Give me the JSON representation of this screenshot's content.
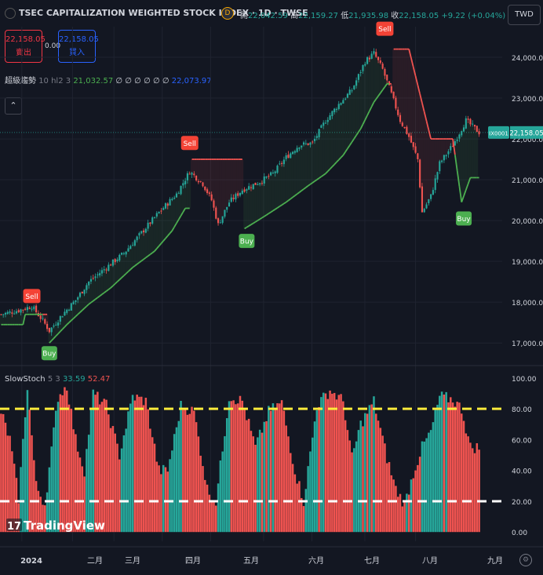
{
  "header": {
    "title": "TSEC CAPITALIZATION WEIGHTED STOCK INDEX · 1D · TWSE",
    "badge": "D",
    "open_label": "開",
    "open": "22,042.59",
    "high_label": "高",
    "high": "22,159.27",
    "low_label": "低",
    "low": "21,935.98",
    "close_label": "收",
    "close": "22,158.05",
    "change": "+9.22 (+0.04%)",
    "currency": "TWD"
  },
  "trade": {
    "sell_price": "22,158.05",
    "sell_label": "賣出",
    "spread": "0.00",
    "buy_price": "22,158.05",
    "buy_label": "買入"
  },
  "indicator": {
    "name": "超級趨勢",
    "params": "10 hl2 3",
    "value1": "21,032.57",
    "empties": "∅ ∅ ∅ ∅ ∅ ∅",
    "value2": "22,073.97"
  },
  "price_tag": {
    "symbol": "IX0001",
    "value": "22,158.05"
  },
  "oscillator": {
    "name": "SlowStoch",
    "params": "5 3",
    "k": "33.59",
    "d": "52.47"
  },
  "logo": "TradingView",
  "colors": {
    "up": "#26a69a",
    "down": "#ef5350",
    "buy": "#4caf50",
    "sell": "#f44336",
    "background": "#131722"
  },
  "chart_data": [
    {
      "type": "candlestick",
      "y_ticks": [
        "24,000.00",
        "23,000.00",
        "22,000.00",
        "21,000.00",
        "20,000.00",
        "19,000.00",
        "18,000.00",
        "17,000.00"
      ],
      "y_values": [
        24000,
        23000,
        22000,
        21000,
        20000,
        19000,
        18000,
        17000
      ],
      "ylim": [
        16600,
        24750
      ],
      "x_ticks": [
        "2024",
        "二月",
        "三月",
        "四月",
        "五月",
        "六月",
        "七月",
        "八月",
        "九月"
      ],
      "price_anchors": [
        [
          0,
          17700
        ],
        [
          8,
          17800
        ],
        [
          14,
          17900
        ],
        [
          19,
          17550
        ],
        [
          22,
          17300
        ],
        [
          28,
          17700
        ],
        [
          34,
          18050
        ],
        [
          40,
          18500
        ],
        [
          48,
          18850
        ],
        [
          56,
          19200
        ],
        [
          64,
          19700
        ],
        [
          72,
          20200
        ],
        [
          80,
          20650
        ],
        [
          86,
          21200
        ],
        [
          92,
          20900
        ],
        [
          96,
          20500
        ],
        [
          99,
          19900
        ],
        [
          104,
          20450
        ],
        [
          110,
          20750
        ],
        [
          118,
          20950
        ],
        [
          124,
          21150
        ],
        [
          130,
          21550
        ],
        [
          136,
          21850
        ],
        [
          142,
          21900
        ],
        [
          148,
          22450
        ],
        [
          154,
          22850
        ],
        [
          160,
          23200
        ],
        [
          166,
          23900
        ],
        [
          170,
          24100
        ],
        [
          174,
          23700
        ],
        [
          178,
          23100
        ],
        [
          182,
          22450
        ],
        [
          186,
          22050
        ],
        [
          190,
          21500
        ],
        [
          192,
          20200
        ],
        [
          196,
          20600
        ],
        [
          200,
          21400
        ],
        [
          206,
          21850
        ],
        [
          212,
          22450
        ],
        [
          218,
          22158
        ]
      ],
      "supertrend": [
        [
          0,
          17450
        ],
        [
          10,
          17450
        ],
        [
          10,
          17700
        ],
        [
          14,
          17700
        ],
        [
          21,
          17700
        ],
        [
          22,
          17000
        ],
        [
          30,
          17450
        ],
        [
          40,
          17950
        ],
        [
          50,
          18350
        ],
        [
          60,
          18850
        ],
        [
          70,
          19250
        ],
        [
          78,
          19750
        ],
        [
          84,
          20300
        ],
        [
          86,
          20300
        ],
        [
          86,
          21500
        ],
        [
          110,
          21500
        ],
        [
          111,
          19800
        ],
        [
          120,
          20100
        ],
        [
          130,
          20450
        ],
        [
          140,
          20850
        ],
        [
          148,
          21150
        ],
        [
          156,
          21600
        ],
        [
          164,
          22250
        ],
        [
          170,
          22900
        ],
        [
          176,
          23350
        ],
        [
          178,
          23350
        ],
        [
          178,
          24200
        ],
        [
          186,
          24200
        ],
        [
          196,
          22000
        ],
        [
          206,
          22000
        ],
        [
          210,
          20450
        ],
        [
          214,
          21050
        ],
        [
          218,
          21050
        ]
      ],
      "signals": [
        {
          "label": "Sell",
          "index": 14,
          "price": 17900
        },
        {
          "label": "Buy",
          "index": 22,
          "price": 17000
        },
        {
          "label": "Sell",
          "index": 86,
          "price": 21650
        },
        {
          "label": "Buy",
          "index": 112,
          "price": 19750
        },
        {
          "label": "Sell",
          "index": 175,
          "price": 24450
        },
        {
          "label": "Buy",
          "index": 211,
          "price": 20300
        }
      ]
    },
    {
      "type": "bar",
      "name": "SlowStoch",
      "y_ticks": [
        "100.00",
        "80.00",
        "60.00",
        "40.00",
        "20.00",
        "0.00"
      ],
      "y_values": [
        100,
        80,
        60,
        40,
        20,
        0
      ],
      "ylim": [
        0,
        100
      ],
      "levels": [
        80,
        20
      ],
      "k_anchors": [
        [
          0,
          78
        ],
        [
          4,
          60
        ],
        [
          8,
          22
        ],
        [
          12,
          95
        ],
        [
          16,
          30
        ],
        [
          20,
          18
        ],
        [
          26,
          88
        ],
        [
          30,
          95
        ],
        [
          34,
          60
        ],
        [
          38,
          40
        ],
        [
          42,
          90
        ],
        [
          48,
          82
        ],
        [
          54,
          50
        ],
        [
          60,
          88
        ],
        [
          66,
          85
        ],
        [
          72,
          40
        ],
        [
          76,
          40
        ],
        [
          82,
          82
        ],
        [
          88,
          78
        ],
        [
          94,
          28
        ],
        [
          98,
          20
        ],
        [
          104,
          88
        ],
        [
          110,
          85
        ],
        [
          116,
          55
        ],
        [
          122,
          78
        ],
        [
          128,
          84
        ],
        [
          134,
          40
        ],
        [
          138,
          20
        ],
        [
          144,
          82
        ],
        [
          150,
          92
        ],
        [
          156,
          85
        ],
        [
          160,
          48
        ],
        [
          164,
          70
        ],
        [
          170,
          85
        ],
        [
          176,
          48
        ],
        [
          180,
          28
        ],
        [
          184,
          18
        ],
        [
          188,
          38
        ],
        [
          192,
          55
        ],
        [
          196,
          65
        ],
        [
          200,
          88
        ],
        [
          206,
          86
        ],
        [
          210,
          80
        ],
        [
          214,
          55
        ]
      ]
    }
  ]
}
